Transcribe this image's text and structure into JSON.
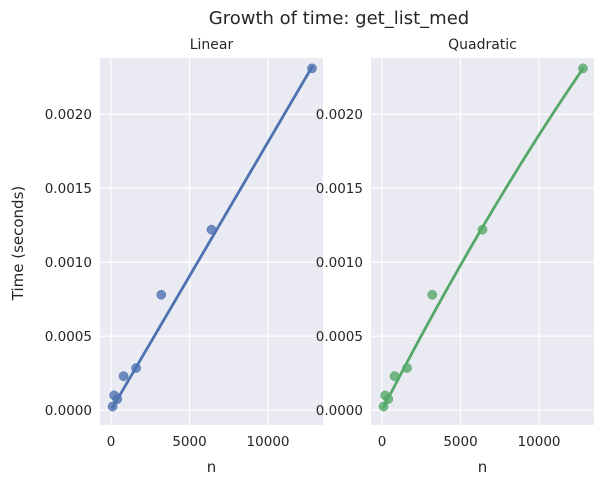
{
  "chart_data": {
    "type": "scatter",
    "suptitle": "Growth of time: get_list_med",
    "ylabel": "Time (seconds)",
    "ylim": [
      -0.0001,
      0.00238
    ],
    "yticks": [
      0.0,
      0.0005,
      0.001,
      0.0015,
      0.002
    ],
    "ytick_labels": [
      "0.0000",
      "0.0005",
      "0.0010",
      "0.0015",
      "0.0020"
    ],
    "xticks": [
      0,
      5000,
      10000
    ],
    "xtick_labels": [
      "0",
      "5000",
      "10000"
    ],
    "points": {
      "x": [
        100,
        200,
        400,
        800,
        1600,
        3200,
        6400,
        12800
      ],
      "y": [
        2.5e-05,
        0.0001,
        7.5e-05,
        0.00023,
        0.000285,
        0.00078,
        0.00122,
        0.00231
      ]
    },
    "panels": [
      {
        "title": "Linear",
        "xlabel": "n",
        "xlim": [
          -700,
          13500
        ],
        "color": "#4c72b0",
        "fit": {
          "model": "linear",
          "coef": [
            1.812e-07,
            3e-07
          ]
        }
      },
      {
        "title": "Quadratic",
        "xlabel": "n",
        "xlim": [
          -700,
          13500
        ],
        "color": "#55a868",
        "fit": {
          "model": "quadratic",
          "coef": [
            -2e-12,
            2.06e-07,
            -3e-07
          ]
        }
      }
    ]
  }
}
